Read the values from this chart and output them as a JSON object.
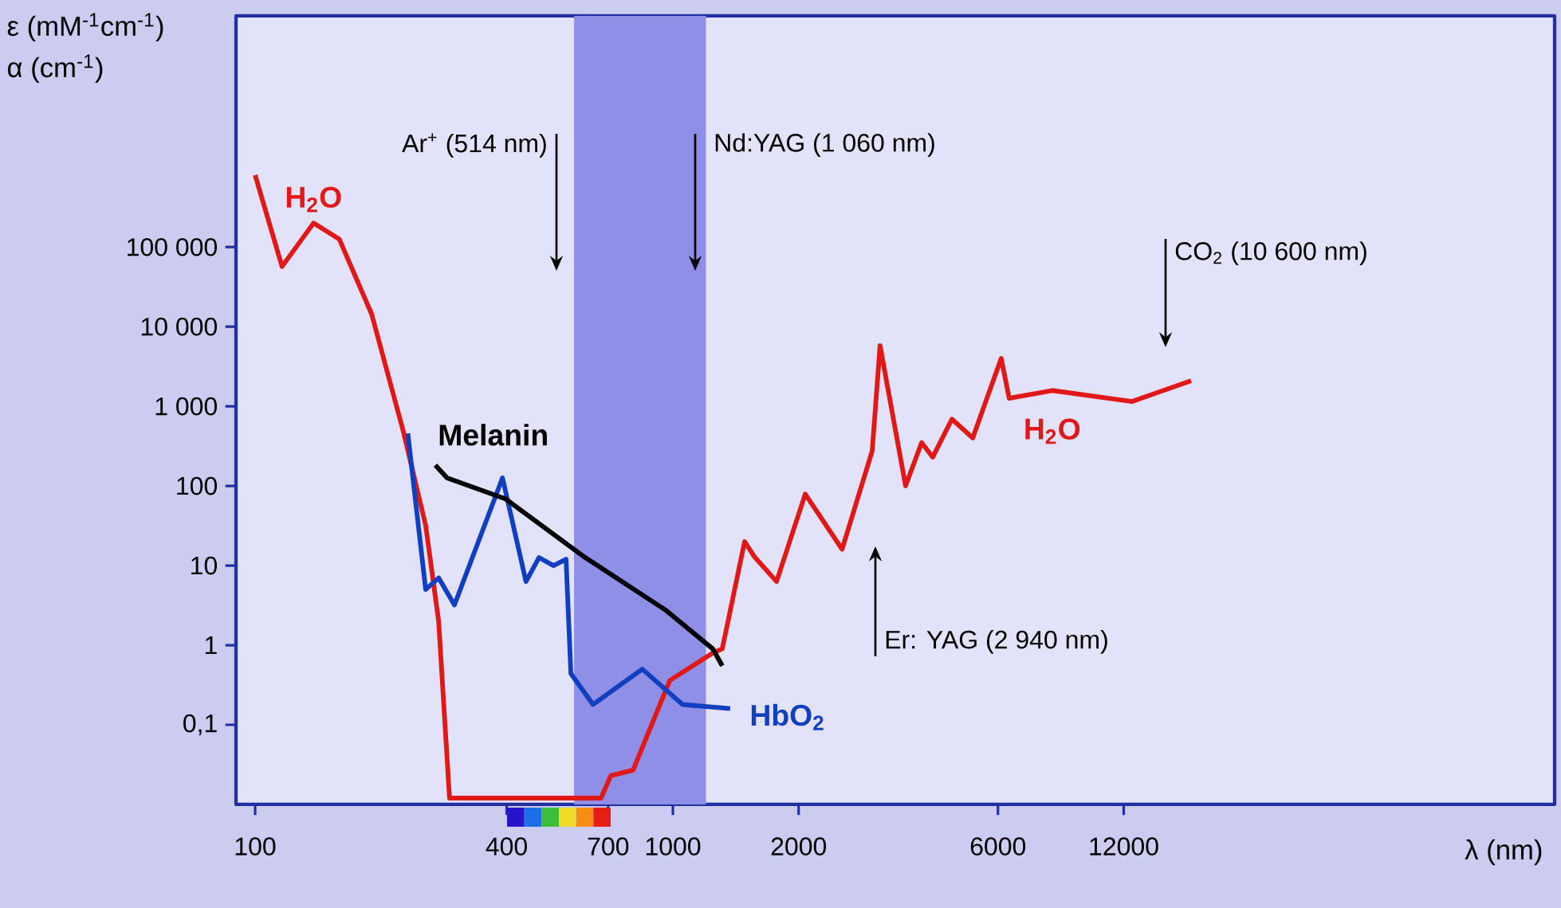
{
  "chart_data": {
    "type": "line",
    "ylabel": "ε (mM$^{-1}$cm$^{-1}$)",
    "xlabel": "λ (nm)",
    "log": "xy",
    "xlim": [
      90,
      129000
    ],
    "ylim": [
      0.01,
      80000000
    ],
    "xticks": [
      100,
      400,
      700,
      1000,
      2000,
      6000,
      12000
    ],
    "yticks": [
      {
        "value": 0.1,
        "label": "0,1"
      },
      1,
      10,
      100,
      {
        "value": 1000,
        "label": "1 000"
      },
      {
        "value": 10000,
        "label": "10 000"
      },
      {
        "value": 100000,
        "label": "100 000"
      }
    ],
    "series": [
      {
        "name": "H$_{2}$O",
        "color": "#e01818",
        "x": [
          100,
          116,
          138,
          159,
          190,
          226,
          256,
          275,
          292,
          673,
          710,
          803,
          983,
          1246,
          1313,
          1485,
          1566,
          1771,
          2074,
          2541,
          3000,
          3133,
          3606,
          3939,
          4188,
          4655,
          5220,
          6109,
          6383,
          8090,
          12570,
          17400
        ],
        "values": [
          800000,
          57000,
          200000,
          126000,
          14500,
          500,
          32,
          2,
          0.012,
          0.012,
          0.023,
          0.027,
          0.36,
          0.8,
          0.9,
          20,
          13,
          6.3,
          79,
          16,
          275,
          5800,
          100,
          350,
          230,
          690,
          400,
          4000,
          1260,
          1580,
          1150,
          2100
        ]
      },
      {
        "name": "HbO$_{2}$",
        "color": "#1040c0",
        "x": [
          232,
          256,
          275,
          300,
          391,
          445,
          478,
          518,
          555,
          570,
          644,
          845,
          1055,
          1371
        ],
        "values": [
          457,
          5,
          7,
          3.2,
          126,
          6.3,
          12.6,
          10,
          12,
          0.44,
          0.18,
          0.5,
          0.18,
          0.16
        ]
      },
      {
        "name": "Melanin",
        "color": "#000000",
        "x": [
          270,
          288,
          397,
          617,
          957,
          1246,
          1313
        ],
        "values": [
          182,
          126,
          69,
          12.6,
          2.8,
          0.9,
          0.55
        ]
      }
    ],
    "bands": [
      {
        "axis": "x",
        "from": 580,
        "to": 1200,
        "color": "#8f8fe8"
      }
    ],
    "annotations": [
      "Ar$^{+}$ (514 nm)",
      "Nd:YAG (1 060 nm)",
      "CO$_{2}$ (10 600 nm)",
      "Er: YAG (2 940 nm)",
      "α (cm$^{-1}$)"
    ]
  }
}
